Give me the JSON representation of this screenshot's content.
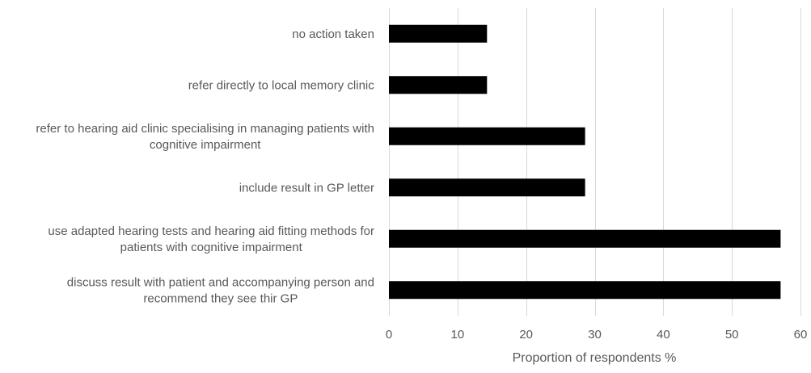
{
  "chart_data": {
    "type": "bar",
    "orientation": "horizontal",
    "xlabel": "Proportion of respondents %",
    "ylabel": "",
    "xlim": [
      0,
      60
    ],
    "ticks": [
      0,
      10,
      20,
      30,
      40,
      50,
      60
    ],
    "grid": "vertical",
    "legend": "none",
    "bar_color": "#000000",
    "grid_color": "#d9d9d9",
    "text_color": "#595959",
    "categories": [
      [
        "no action taken"
      ],
      [
        "refer directly to local memory clinic"
      ],
      [
        "refer to hearing aid clinic specialising in managing patients with",
        "cognitive impairment"
      ],
      [
        "include result in GP letter"
      ],
      [
        "use adapted hearing tests and hearing aid fitting methods for",
        "patients with cognitive impairment"
      ],
      [
        "discuss result with patient and accompanying person and",
        "recommend they see thir GP"
      ]
    ],
    "values": [
      14.3,
      14.3,
      28.6,
      28.6,
      57.1,
      57.1
    ]
  }
}
